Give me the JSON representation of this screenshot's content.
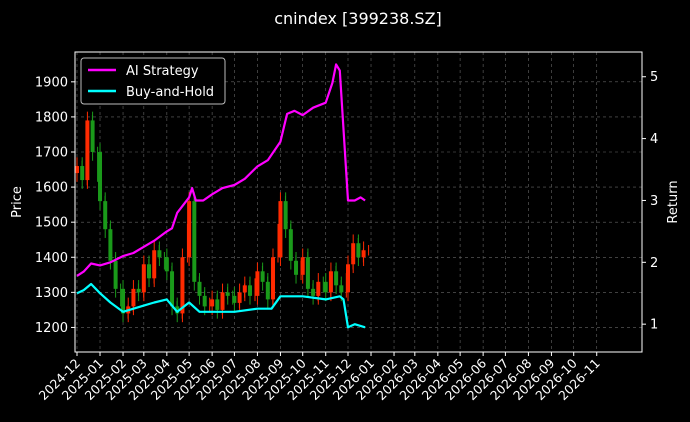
{
  "chart_data": {
    "type": "line",
    "title": "cnindex [399238.SZ]",
    "xlabel": "",
    "ylabel": "Price",
    "y2label": "Return",
    "x_tick_labels": [
      "2024-12",
      "2025-01",
      "2025-02",
      "2025-03",
      "2025-04",
      "2025-05",
      "2025-06",
      "2025-07",
      "2025-08",
      "2025-09",
      "2025-10",
      "2025-11",
      "2025-12",
      "2026-01",
      "2026-02",
      "2026-03",
      "2026-04",
      "2026-05",
      "2026-06",
      "2026-07",
      "2026-08",
      "2026-09",
      "2026-10",
      "2026-11"
    ],
    "xlim": [
      "2024-12",
      "2026-12"
    ],
    "ylim": [
      1130,
      1985
    ],
    "y_ticks": [
      1200,
      1300,
      1400,
      1500,
      1600,
      1700,
      1800,
      1900
    ],
    "y2lim": [
      0.55,
      5.4
    ],
    "y2_ticks": [
      1,
      2,
      3,
      4,
      5
    ],
    "grid": true,
    "legend": {
      "placement": "top-left",
      "entries": [
        "AI Strategy",
        "Buy-and-Hold"
      ]
    },
    "colors": {
      "ai": "#ff00ff",
      "bh": "#00ffff",
      "up": "#ff2a00",
      "down": "#1a9a1a",
      "grid": "#666666",
      "background": "#000000"
    },
    "series": [
      {
        "name": "AI Strategy",
        "axis": "right",
        "color": "#ff00ff",
        "x": [
          "2024-12-01",
          "2024-12-10",
          "2024-12-20",
          "2025-01-01",
          "2025-01-15",
          "2025-02-01",
          "2025-02-15",
          "2025-03-01",
          "2025-03-15",
          "2025-04-01",
          "2025-04-08",
          "2025-04-15",
          "2025-05-01",
          "2025-05-05",
          "2025-05-10",
          "2025-05-20",
          "2025-06-01",
          "2025-06-15",
          "2025-07-01",
          "2025-07-15",
          "2025-08-01",
          "2025-08-15",
          "2025-09-01",
          "2025-09-10",
          "2025-09-20",
          "2025-10-01",
          "2025-10-15",
          "2025-11-01",
          "2025-11-10",
          "2025-11-15",
          "2025-11-20",
          "2025-12-01",
          "2025-12-10",
          "2025-12-18",
          "2025-12-24"
        ],
        "values": [
          1.78,
          1.85,
          1.98,
          1.95,
          2.0,
          2.1,
          2.15,
          2.25,
          2.35,
          2.5,
          2.55,
          2.8,
          3.05,
          3.2,
          3.0,
          3.0,
          3.1,
          3.2,
          3.25,
          3.35,
          3.55,
          3.65,
          3.95,
          4.4,
          4.45,
          4.38,
          4.5,
          4.58,
          4.9,
          5.2,
          5.1,
          3.0,
          3.0,
          3.05,
          3.0
        ]
      },
      {
        "name": "Buy-and-Hold",
        "axis": "right",
        "color": "#00ffff",
        "x": [
          "2024-12-01",
          "2024-12-10",
          "2024-12-20",
          "2025-01-01",
          "2025-01-15",
          "2025-02-01",
          "2025-02-15",
          "2025-03-01",
          "2025-03-15",
          "2025-04-01",
          "2025-04-15",
          "2025-05-01",
          "2025-05-15",
          "2025-06-01",
          "2025-07-01",
          "2025-08-01",
          "2025-08-20",
          "2025-09-01",
          "2025-10-01",
          "2025-11-01",
          "2025-11-20",
          "2025-11-25",
          "2025-12-01",
          "2025-12-10",
          "2025-12-24"
        ],
        "values": [
          1.5,
          1.55,
          1.65,
          1.5,
          1.35,
          1.2,
          1.25,
          1.3,
          1.35,
          1.4,
          1.2,
          1.35,
          1.2,
          1.2,
          1.2,
          1.25,
          1.25,
          1.45,
          1.45,
          1.4,
          1.45,
          1.4,
          0.95,
          1.0,
          0.95
        ]
      },
      {
        "name": "Price",
        "axis": "left",
        "type": "candlestick",
        "x": [
          "2024-12-01",
          "2024-12-08",
          "2024-12-15",
          "2024-12-22",
          "2025-01-01",
          "2025-01-08",
          "2025-01-15",
          "2025-01-22",
          "2025-02-01",
          "2025-02-08",
          "2025-02-15",
          "2025-02-22",
          "2025-03-01",
          "2025-03-08",
          "2025-03-15",
          "2025-03-22",
          "2025-04-01",
          "2025-04-08",
          "2025-04-15",
          "2025-04-22",
          "2025-05-01",
          "2025-05-08",
          "2025-05-15",
          "2025-05-22",
          "2025-06-01",
          "2025-06-08",
          "2025-06-15",
          "2025-06-22",
          "2025-07-01",
          "2025-07-08",
          "2025-07-15",
          "2025-07-22",
          "2025-08-01",
          "2025-08-08",
          "2025-08-15",
          "2025-08-22",
          "2025-09-01",
          "2025-09-08",
          "2025-09-15",
          "2025-09-22",
          "2025-10-01",
          "2025-10-08",
          "2025-10-15",
          "2025-10-22",
          "2025-11-01",
          "2025-11-08",
          "2025-11-15",
          "2025-11-22",
          "2025-12-01",
          "2025-12-08",
          "2025-12-15",
          "2025-12-22"
        ],
        "values": [
          1660,
          1620,
          1790,
          1700,
          1560,
          1480,
          1390,
          1310,
          1240,
          1260,
          1310,
          1300,
          1380,
          1340,
          1420,
          1400,
          1360,
          1260,
          1240,
          1400,
          1560,
          1330,
          1290,
          1260,
          1280,
          1250,
          1300,
          1290,
          1270,
          1300,
          1320,
          1290,
          1360,
          1330,
          1280,
          1400,
          1560,
          1480,
          1390,
          1350,
          1400,
          1310,
          1290,
          1330,
          1300,
          1360,
          1320,
          1300,
          1380,
          1440,
          1400,
          1420
        ]
      }
    ]
  }
}
